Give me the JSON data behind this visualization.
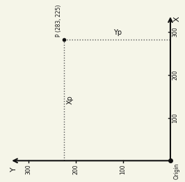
{
  "background_color": "#f5f5e8",
  "axis_color": "#111111",
  "dot_color": "#555555",
  "point_label": "P (283, 225)",
  "xp_label": "Xp",
  "yp_label": "Yp",
  "x_axis_label": "X",
  "y_axis_label": "Y",
  "origin_label": "Origin",
  "ticks": [
    100,
    200,
    300
  ],
  "axis_max": 320,
  "Xp": 283,
  "Yp": 225,
  "figsize": [
    2.66,
    2.62
  ],
  "dpi": 100
}
